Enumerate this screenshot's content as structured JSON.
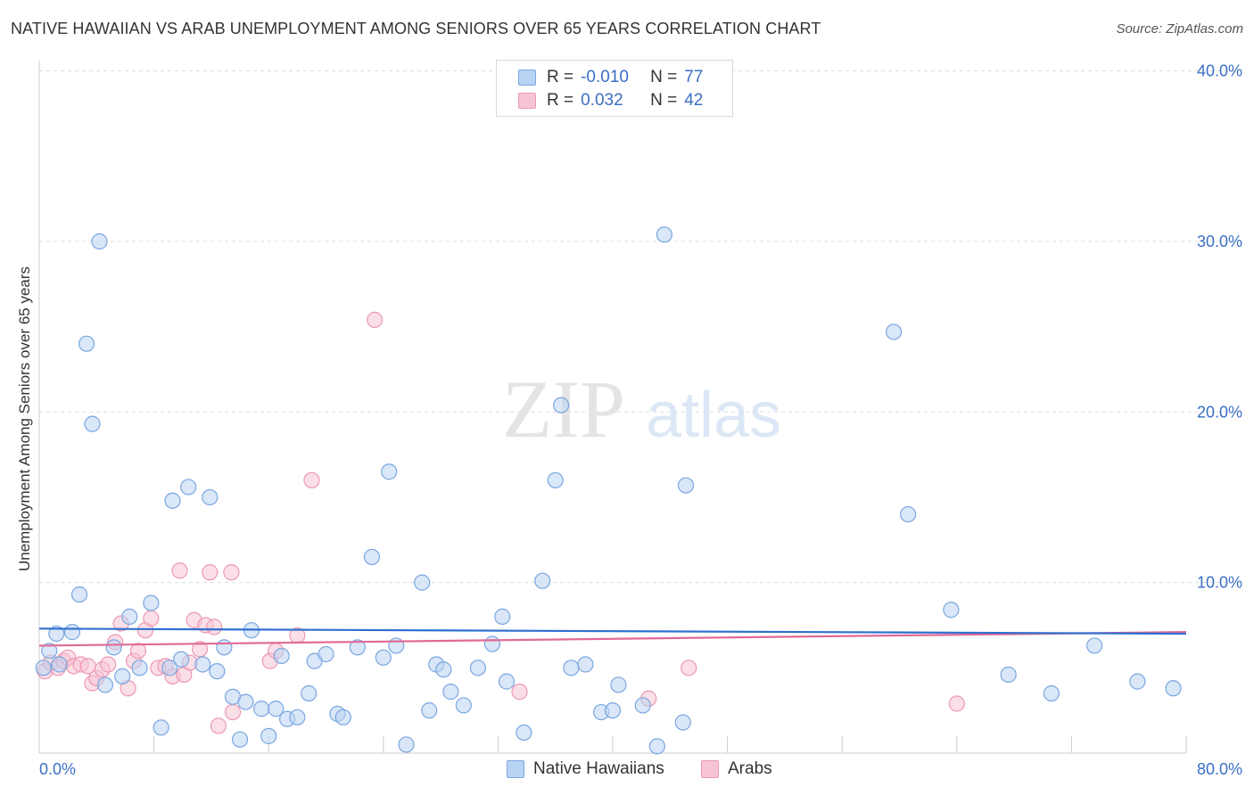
{
  "title": "NATIVE HAWAIIAN VS ARAB UNEMPLOYMENT AMONG SENIORS OVER 65 YEARS CORRELATION CHART",
  "source": "Source: ZipAtlas.com",
  "watermark": {
    "zip": "ZIP",
    "atlas": "atlas"
  },
  "colors": {
    "hawaiian_fill": "#b9d3f3",
    "hawaiian_stroke": "#7aa6e0",
    "hawaiian_line": "#2f6fd0",
    "arab_fill": "#f7c4d4",
    "arab_stroke": "#ec98b4",
    "arab_line": "#e06a97",
    "axis_text": "#3a6fc4",
    "grid": "#dddddd"
  },
  "legend": {
    "rows": [
      {
        "r_label": "R =",
        "r_value": "-0.010",
        "n_label": "N =",
        "n_value": "77"
      },
      {
        "r_label": "R =",
        "r_value": "0.032",
        "n_label": "N =",
        "n_value": "42"
      }
    ]
  },
  "chart_data": {
    "type": "scatter",
    "title": "NATIVE HAWAIIAN VS ARAB UNEMPLOYMENT AMONG SENIORS OVER 65 YEARS CORRELATION CHART",
    "xlabel": "",
    "ylabel": "Unemployment Among Seniors over 65 years",
    "xlim": [
      0,
      80
    ],
    "ylim": [
      0,
      40
    ],
    "x_tick_labels": [
      "0.0%",
      "80.0%"
    ],
    "y_ticks": [
      10,
      20,
      30,
      40
    ],
    "y_tick_labels": [
      "10.0%",
      "20.0%",
      "30.0%",
      "40.0%"
    ],
    "grid": true,
    "legend_position": "bottom",
    "series": [
      {
        "name": "Native Hawaiians",
        "trend": [
          [
            0,
            7.3
          ],
          [
            80,
            7.0
          ]
        ],
        "points": [
          [
            0.3,
            5.0
          ],
          [
            0.7,
            6.0
          ],
          [
            1.2,
            7.0
          ],
          [
            1.4,
            5.2
          ],
          [
            2.3,
            7.1
          ],
          [
            2.8,
            9.3
          ],
          [
            3.3,
            24.0
          ],
          [
            3.7,
            19.3
          ],
          [
            4.2,
            30.0
          ],
          [
            4.6,
            4.0
          ],
          [
            5.2,
            6.2
          ],
          [
            5.8,
            4.5
          ],
          [
            6.3,
            8.0
          ],
          [
            7.0,
            5.0
          ],
          [
            7.8,
            8.8
          ],
          [
            8.5,
            1.5
          ],
          [
            9.1,
            5.0
          ],
          [
            9.3,
            14.8
          ],
          [
            9.9,
            5.5
          ],
          [
            10.4,
            15.6
          ],
          [
            11.4,
            5.2
          ],
          [
            11.9,
            15.0
          ],
          [
            12.4,
            4.8
          ],
          [
            12.9,
            6.2
          ],
          [
            13.5,
            3.3
          ],
          [
            14.0,
            0.8
          ],
          [
            14.4,
            3.0
          ],
          [
            14.8,
            7.2
          ],
          [
            15.5,
            2.6
          ],
          [
            16.0,
            1.0
          ],
          [
            16.5,
            2.6
          ],
          [
            16.9,
            5.7
          ],
          [
            17.3,
            2.0
          ],
          [
            18.0,
            2.1
          ],
          [
            18.8,
            3.5
          ],
          [
            19.2,
            5.4
          ],
          [
            20.0,
            5.8
          ],
          [
            20.8,
            2.3
          ],
          [
            21.2,
            2.1
          ],
          [
            22.2,
            6.2
          ],
          [
            23.2,
            11.5
          ],
          [
            24.0,
            5.6
          ],
          [
            24.4,
            16.5
          ],
          [
            24.9,
            6.3
          ],
          [
            25.6,
            0.5
          ],
          [
            26.7,
            10.0
          ],
          [
            27.2,
            2.5
          ],
          [
            27.7,
            5.2
          ],
          [
            28.2,
            4.9
          ],
          [
            28.7,
            3.6
          ],
          [
            29.6,
            2.8
          ],
          [
            30.6,
            5.0
          ],
          [
            31.6,
            6.4
          ],
          [
            32.3,
            8.0
          ],
          [
            32.6,
            4.2
          ],
          [
            33.8,
            1.2
          ],
          [
            35.1,
            10.1
          ],
          [
            36.0,
            16.0
          ],
          [
            36.4,
            20.4
          ],
          [
            37.1,
            5.0
          ],
          [
            38.1,
            5.2
          ],
          [
            39.2,
            2.4
          ],
          [
            40.0,
            2.5
          ],
          [
            40.4,
            4.0
          ],
          [
            42.1,
            2.8
          ],
          [
            43.1,
            0.4
          ],
          [
            43.6,
            30.4
          ],
          [
            44.9,
            1.8
          ],
          [
            45.1,
            15.7
          ],
          [
            59.6,
            24.7
          ],
          [
            60.6,
            14.0
          ],
          [
            63.6,
            8.4
          ],
          [
            67.6,
            4.6
          ],
          [
            70.6,
            3.5
          ],
          [
            73.6,
            6.3
          ],
          [
            76.6,
            4.2
          ],
          [
            79.1,
            3.8
          ]
        ]
      },
      {
        "name": "Arabs",
        "trend": [
          [
            0,
            6.3
          ],
          [
            80,
            7.1
          ]
        ],
        "points": [
          [
            0.4,
            4.8
          ],
          [
            0.8,
            5.3
          ],
          [
            1.3,
            5.0
          ],
          [
            1.7,
            5.4
          ],
          [
            2.0,
            5.6
          ],
          [
            2.4,
            5.1
          ],
          [
            2.9,
            5.2
          ],
          [
            3.4,
            5.1
          ],
          [
            3.7,
            4.1
          ],
          [
            4.0,
            4.4
          ],
          [
            4.4,
            4.9
          ],
          [
            4.8,
            5.2
          ],
          [
            5.3,
            6.5
          ],
          [
            5.7,
            7.6
          ],
          [
            6.2,
            3.8
          ],
          [
            6.6,
            5.4
          ],
          [
            6.9,
            6.0
          ],
          [
            7.4,
            7.2
          ],
          [
            7.8,
            7.9
          ],
          [
            8.3,
            5.0
          ],
          [
            8.8,
            5.1
          ],
          [
            9.3,
            4.5
          ],
          [
            9.8,
            10.7
          ],
          [
            10.1,
            4.6
          ],
          [
            10.5,
            5.3
          ],
          [
            10.8,
            7.8
          ],
          [
            11.2,
            6.1
          ],
          [
            11.6,
            7.5
          ],
          [
            11.9,
            10.6
          ],
          [
            12.2,
            7.4
          ],
          [
            12.5,
            1.6
          ],
          [
            13.4,
            10.6
          ],
          [
            13.5,
            2.4
          ],
          [
            16.1,
            5.4
          ],
          [
            16.5,
            6.0
          ],
          [
            18.0,
            6.9
          ],
          [
            19.0,
            16.0
          ],
          [
            23.4,
            25.4
          ],
          [
            33.5,
            3.6
          ],
          [
            42.5,
            3.2
          ],
          [
            45.3,
            5.0
          ],
          [
            64.0,
            2.9
          ]
        ]
      }
    ]
  }
}
